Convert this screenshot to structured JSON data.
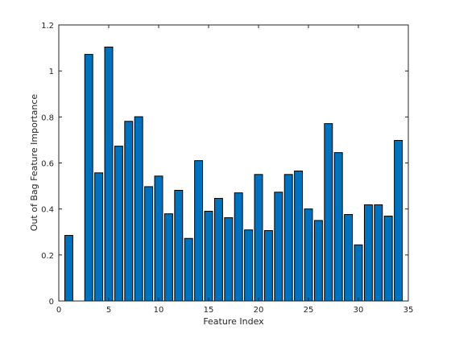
{
  "chart_data": {
    "type": "bar",
    "title": "",
    "xlabel": "Feature Index",
    "ylabel": "Out of Bag Feature Importance",
    "x": [
      1,
      2,
      3,
      4,
      5,
      6,
      7,
      8,
      9,
      10,
      11,
      12,
      13,
      14,
      15,
      16,
      17,
      18,
      19,
      20,
      21,
      22,
      23,
      24,
      25,
      26,
      27,
      28,
      29,
      30,
      31,
      32,
      33,
      34
    ],
    "values": [
      0.285,
      0,
      1.072,
      0.557,
      1.104,
      0.673,
      0.781,
      0.801,
      0.497,
      0.543,
      0.379,
      0.481,
      0.272,
      0.61,
      0.39,
      0.446,
      0.362,
      0.47,
      0.309,
      0.55,
      0.306,
      0.473,
      0.55,
      0.565,
      0.4,
      0.35,
      0.771,
      0.645,
      0.376,
      0.244,
      0.418,
      0.418,
      0.369,
      0.698
    ],
    "xlim": [
      0,
      35
    ],
    "ylim": [
      0,
      1.2
    ],
    "xticks": [
      "0",
      "5",
      "10",
      "15",
      "20",
      "25",
      "30",
      "35"
    ],
    "yticks": [
      "0",
      "0.2",
      "0.4",
      "0.6",
      "0.8",
      "1",
      "1.2"
    ],
    "grid": false,
    "bar_color": "#0072bd",
    "bar_edge_color": "#000000"
  }
}
